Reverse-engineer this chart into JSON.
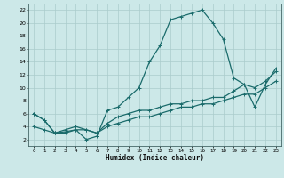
{
  "xlabel": "Humidex (Indice chaleur)",
  "bg_color": "#cce8e8",
  "grid_color": "#aacccc",
  "line_color": "#1a6b6b",
  "xlim": [
    -0.5,
    23.5
  ],
  "ylim": [
    1,
    23
  ],
  "xticks": [
    0,
    1,
    2,
    3,
    4,
    5,
    6,
    7,
    8,
    9,
    10,
    11,
    12,
    13,
    14,
    15,
    16,
    17,
    18,
    19,
    20,
    21,
    22,
    23
  ],
  "yticks": [
    2,
    4,
    6,
    8,
    10,
    12,
    14,
    16,
    18,
    20,
    22
  ],
  "line1_x": [
    0,
    1,
    2,
    3,
    4,
    5,
    6,
    7,
    8,
    9,
    10,
    11,
    12,
    13,
    14,
    15,
    16,
    17,
    18,
    19,
    20,
    21,
    22,
    23
  ],
  "line1_y": [
    6,
    5,
    3,
    3,
    3.5,
    2,
    2.5,
    6.5,
    7,
    8.5,
    10,
    14,
    16.5,
    20.5,
    21,
    21.5,
    22,
    20,
    17.5,
    11.5,
    10.5,
    7,
    10.5,
    13
  ],
  "line2_x": [
    0,
    1,
    2,
    3,
    4,
    5,
    6,
    7,
    8,
    9,
    10,
    11,
    12,
    13,
    14,
    15,
    16,
    17,
    18,
    19,
    20,
    21,
    22,
    23
  ],
  "line2_y": [
    6,
    5,
    3,
    3.5,
    4,
    3.5,
    3,
    4.5,
    5.5,
    6,
    6.5,
    6.5,
    7,
    7.5,
    7.5,
    8,
    8,
    8.5,
    8.5,
    9.5,
    10.5,
    10,
    11,
    12.5
  ],
  "line3_x": [
    0,
    1,
    2,
    3,
    4,
    5,
    6,
    7,
    8,
    9,
    10,
    11,
    12,
    13,
    14,
    15,
    16,
    17,
    18,
    19,
    20,
    21,
    22,
    23
  ],
  "line3_y": [
    4,
    3.5,
    3,
    3.2,
    3.5,
    3.5,
    3,
    4,
    4.5,
    5,
    5.5,
    5.5,
    6,
    6.5,
    7,
    7,
    7.5,
    7.5,
    8,
    8.5,
    9,
    9,
    10,
    11
  ]
}
